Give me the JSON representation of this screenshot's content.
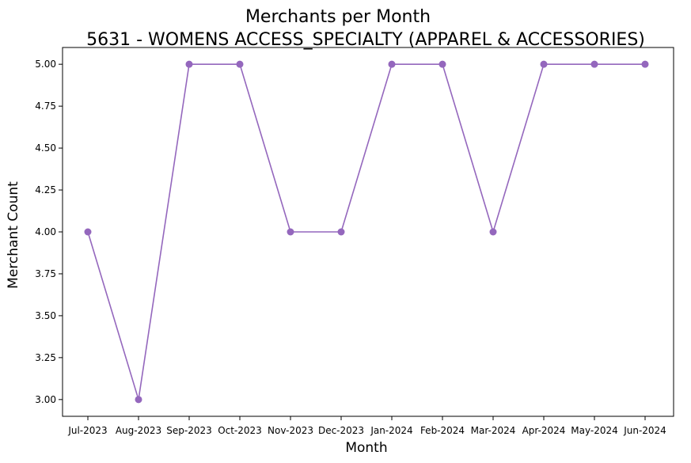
{
  "chart_data": {
    "type": "line",
    "title": "Merchants per Month",
    "subtitle": "5631 - WOMENS ACCESS_SPECIALTY (APPAREL & ACCESSORIES)",
    "xlabel": "Month",
    "ylabel": "Merchant Count",
    "categories": [
      "Jul-2023",
      "Aug-2023",
      "Sep-2023",
      "Oct-2023",
      "Nov-2023",
      "Dec-2023",
      "Jan-2024",
      "Feb-2024",
      "Mar-2024",
      "Apr-2024",
      "May-2024",
      "Jun-2024"
    ],
    "series": [
      {
        "values": [
          4,
          3,
          5,
          5,
          4,
          4,
          5,
          5,
          4,
          5,
          5,
          5
        ],
        "color": "#9467bd",
        "marker": "circle"
      }
    ],
    "ylim": [
      2.9,
      5.1
    ],
    "yticks": [
      3.0,
      3.25,
      3.5,
      3.75,
      4.0,
      4.25,
      4.5,
      4.75,
      5.0
    ],
    "ytick_labels": [
      "3.00",
      "3.25",
      "3.50",
      "3.75",
      "4.00",
      "4.25",
      "4.50",
      "4.75",
      "5.00"
    ],
    "grid": false,
    "legend": "none"
  }
}
